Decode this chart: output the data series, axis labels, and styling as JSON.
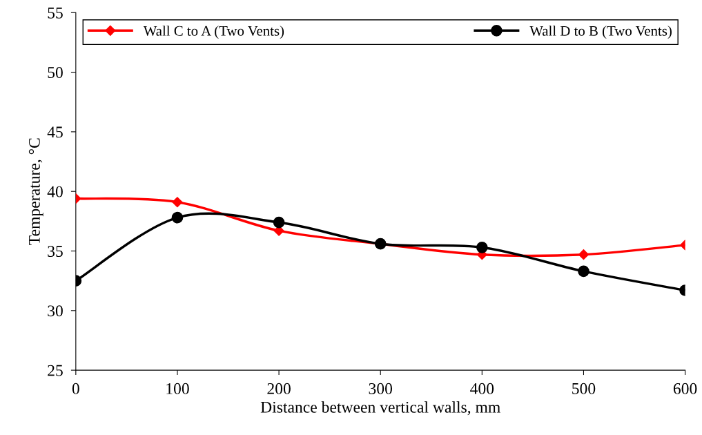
{
  "chart_data": {
    "type": "line",
    "xlabel": "Distance between vertical walls, mm",
    "ylabel": "Temperature, °C",
    "x": [
      0,
      100,
      200,
      300,
      400,
      500,
      600
    ],
    "series": [
      {
        "name": "Wall C to A (Two Vents)",
        "color": "#ff0000",
        "marker": "diamond",
        "values": [
          39.4,
          39.1,
          36.7,
          35.6,
          34.7,
          34.7,
          35.5
        ]
      },
      {
        "name": "Wall D to B (Two Vents)",
        "color": "#000000",
        "marker": "circle",
        "values": [
          32.5,
          37.8,
          37.4,
          35.6,
          35.3,
          33.3,
          31.7
        ]
      }
    ],
    "xlim": [
      0,
      600
    ],
    "xticks": [
      0,
      100,
      200,
      300,
      400,
      500,
      600
    ],
    "ylim": [
      25,
      55
    ],
    "yticks": [
      25,
      30,
      35,
      40,
      45,
      50,
      55
    ],
    "grid": false,
    "legend": "top",
    "line_style": "solid"
  }
}
